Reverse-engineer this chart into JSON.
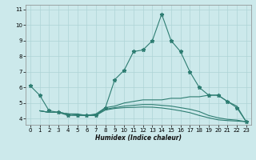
{
  "title": "",
  "xlabel": "Humidex (Indice chaleur)",
  "ylabel": "",
  "bg_color": "#cce9eb",
  "line_color": "#2e7d72",
  "grid_color": "#aed4d6",
  "xlim": [
    -0.5,
    23.5
  ],
  "ylim": [
    3.6,
    11.3
  ],
  "yticks": [
    4,
    5,
    6,
    7,
    8,
    9,
    10,
    11
  ],
  "xticks": [
    0,
    1,
    2,
    3,
    4,
    5,
    6,
    7,
    8,
    9,
    10,
    11,
    12,
    13,
    14,
    15,
    16,
    17,
    18,
    19,
    20,
    21,
    22,
    23
  ],
  "series": [
    {
      "x": [
        0,
        1,
        2,
        3,
        4,
        5,
        6,
        7,
        8,
        9,
        10,
        11,
        12,
        13,
        14,
        15,
        16,
        17,
        18,
        19,
        20,
        21,
        22,
        23
      ],
      "y": [
        6.1,
        5.5,
        4.5,
        4.4,
        4.2,
        4.2,
        4.2,
        4.2,
        4.7,
        6.5,
        7.1,
        8.3,
        8.4,
        9.0,
        10.7,
        9.0,
        8.3,
        7.0,
        6.0,
        5.5,
        5.5,
        5.1,
        4.7,
        3.8
      ],
      "marker": true
    },
    {
      "x": [
        1,
        2,
        3,
        4,
        5,
        6,
        7,
        8,
        9,
        10,
        11,
        12,
        13,
        14,
        15,
        16,
        17,
        18,
        19,
        20,
        21,
        22,
        23
      ],
      "y": [
        4.5,
        4.4,
        4.4,
        4.3,
        4.3,
        4.2,
        4.3,
        4.7,
        4.8,
        5.0,
        5.1,
        5.2,
        5.2,
        5.2,
        5.3,
        5.3,
        5.4,
        5.4,
        5.5,
        5.5,
        5.1,
        4.8,
        3.8
      ],
      "marker": false
    },
    {
      "x": [
        1,
        2,
        3,
        4,
        5,
        6,
        7,
        8,
        9,
        10,
        11,
        12,
        13,
        14,
        15,
        16,
        17,
        18,
        19,
        20,
        21,
        22,
        23
      ],
      "y": [
        4.5,
        4.4,
        4.4,
        4.3,
        4.25,
        4.2,
        4.25,
        4.6,
        4.7,
        4.8,
        4.85,
        4.9,
        4.9,
        4.85,
        4.8,
        4.7,
        4.6,
        4.45,
        4.2,
        4.05,
        3.95,
        3.9,
        3.8
      ],
      "marker": false
    },
    {
      "x": [
        1,
        2,
        3,
        4,
        5,
        6,
        7,
        8,
        9,
        10,
        11,
        12,
        13,
        14,
        15,
        16,
        17,
        18,
        19,
        20,
        21,
        22,
        23
      ],
      "y": [
        4.5,
        4.4,
        4.4,
        4.3,
        4.25,
        4.2,
        4.2,
        4.55,
        4.65,
        4.7,
        4.72,
        4.74,
        4.73,
        4.68,
        4.6,
        4.5,
        4.38,
        4.2,
        4.05,
        3.92,
        3.87,
        3.84,
        3.8
      ],
      "marker": false
    }
  ]
}
